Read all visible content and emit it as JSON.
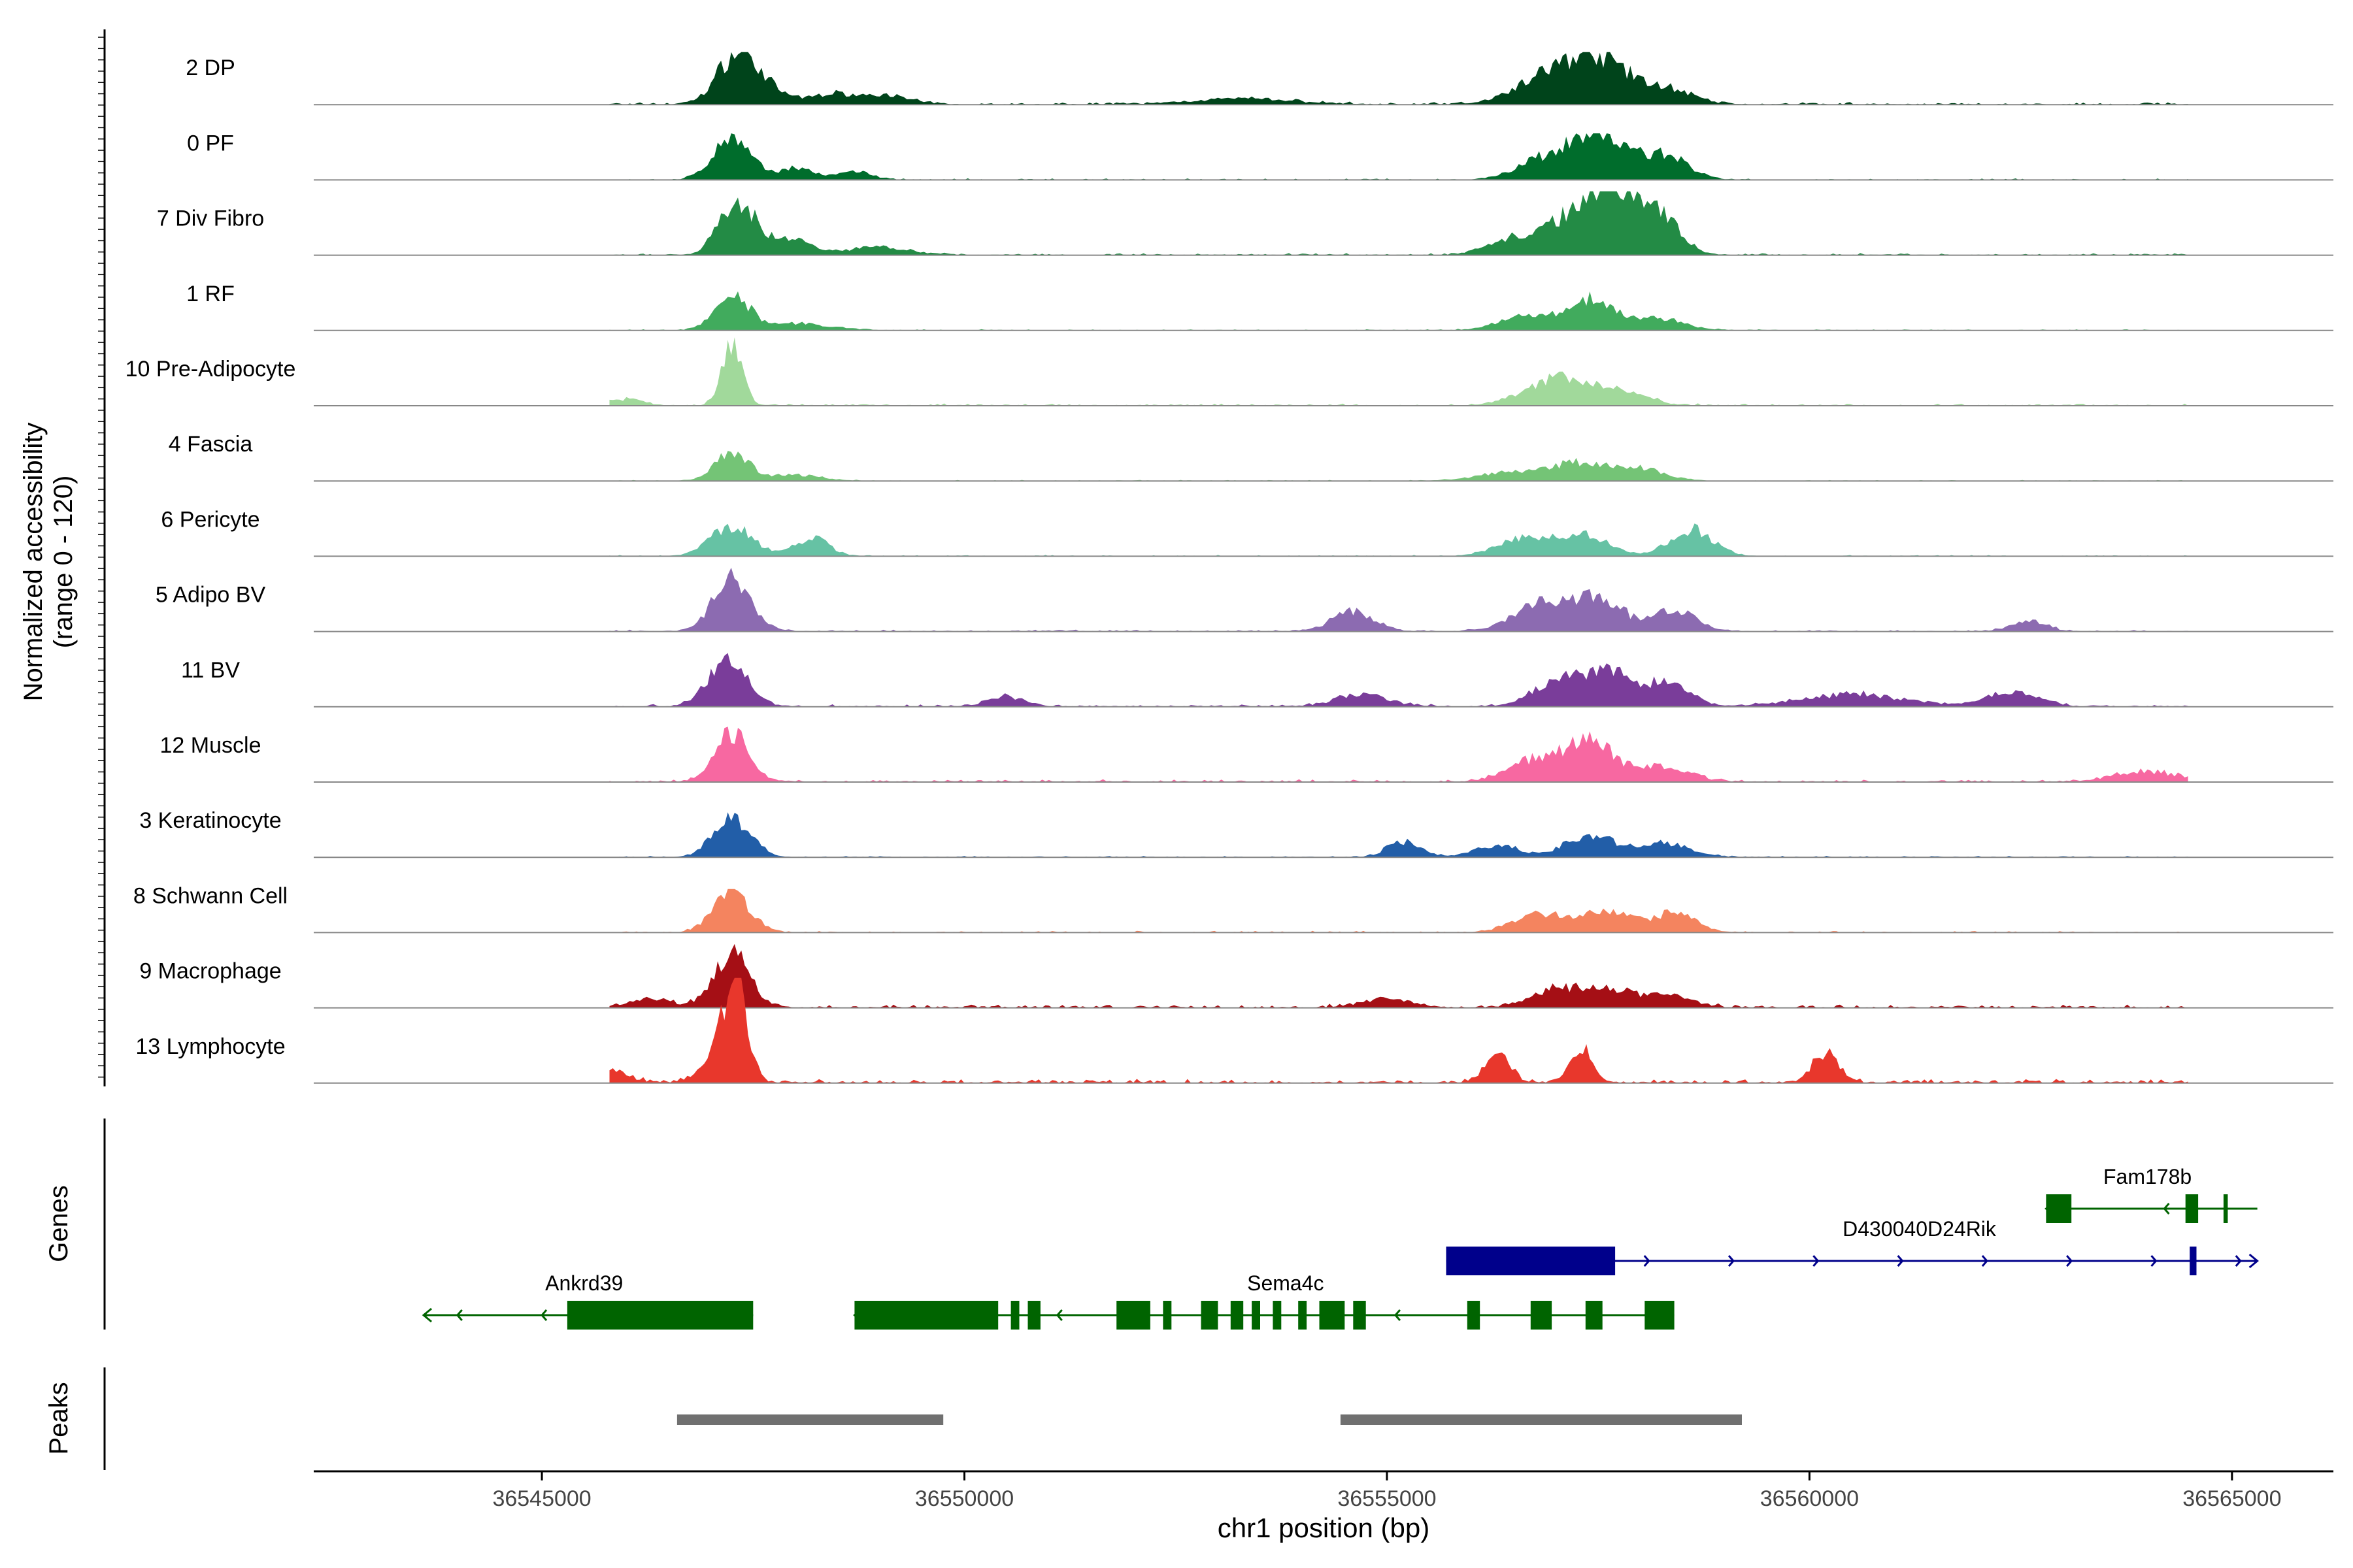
{
  "chart_data": {
    "type": "area",
    "title": "",
    "chrom": "chr1",
    "xlabel": "chr1 position (bp)",
    "ylabel_line1": "Normalized accessibility",
    "ylabel_line2": "(range 0 - 120)",
    "xlim": [
      36542300,
      36566200
    ],
    "y_range": [
      0,
      120
    ],
    "xticks": [
      36545000,
      36550000,
      36555000,
      36560000,
      36565000
    ],
    "xtick_labels": [
      "36545000",
      "36550000",
      "36555000",
      "36560000",
      "36565000"
    ],
    "genes_label": "Genes",
    "peaks_label": "Peaks",
    "tracks": [
      {
        "name": "2 DP",
        "color": "#00441b",
        "scale": 0.7,
        "noise": 0.06,
        "peaks": [
          [
            36547300,
            230,
            1.0
          ],
          [
            36547600,
            260,
            0.3
          ],
          [
            36548400,
            250,
            0.2
          ],
          [
            36549000,
            300,
            0.2
          ],
          [
            36553300,
            600,
            0.12
          ],
          [
            36556800,
            350,
            0.5
          ],
          [
            36557300,
            280,
            0.75
          ],
          [
            36557700,
            250,
            0.6
          ],
          [
            36558300,
            300,
            0.35
          ]
        ]
      },
      {
        "name": "0 PF",
        "color": "#006d2c",
        "scale": 0.62,
        "noise": 0.04,
        "peaks": [
          [
            36547250,
            220,
            1.0
          ],
          [
            36548000,
            200,
            0.3
          ],
          [
            36548700,
            200,
            0.2
          ],
          [
            36556800,
            300,
            0.45
          ],
          [
            36557300,
            250,
            0.8
          ],
          [
            36557700,
            250,
            0.7
          ],
          [
            36558300,
            260,
            0.6
          ]
        ]
      },
      {
        "name": "7 Div Fibro",
        "color": "#238b45",
        "scale": 0.85,
        "noise": 0.04,
        "peaks": [
          [
            36547300,
            200,
            1.0
          ],
          [
            36547900,
            260,
            0.3
          ],
          [
            36549000,
            350,
            0.15
          ],
          [
            36556500,
            300,
            0.3
          ],
          [
            36557300,
            320,
            0.8
          ],
          [
            36557800,
            300,
            0.75
          ],
          [
            36558200,
            260,
            0.6
          ]
        ]
      },
      {
        "name": "1 RF",
        "color": "#41ab5d",
        "scale": 0.52,
        "noise": 0.04,
        "peaks": [
          [
            36547250,
            200,
            1.0
          ],
          [
            36548000,
            400,
            0.2
          ],
          [
            36556600,
            300,
            0.4
          ],
          [
            36557400,
            280,
            0.9
          ],
          [
            36558200,
            300,
            0.35
          ]
        ]
      },
      {
        "name": "10 Pre-Adipocyte",
        "color": "#a1d99b",
        "scale": 0.95,
        "noise": 0.04,
        "peaks": [
          [
            36547250,
            120,
            1.0
          ],
          [
            36546000,
            200,
            0.1
          ],
          [
            36556800,
            300,
            0.25
          ],
          [
            36557200,
            300,
            0.3
          ],
          [
            36557800,
            300,
            0.2
          ]
        ]
      },
      {
        "name": "4 Fascia",
        "color": "#74c476",
        "scale": 0.45,
        "noise": 0.04,
        "peaks": [
          [
            36547250,
            200,
            1.0
          ],
          [
            36548000,
            300,
            0.2
          ],
          [
            36556500,
            400,
            0.3
          ],
          [
            36557300,
            300,
            0.6
          ],
          [
            36558000,
            300,
            0.4
          ]
        ]
      },
      {
        "name": "6 Pericyte",
        "color": "#66c2a4",
        "scale": 0.55,
        "noise": 0.04,
        "peaks": [
          [
            36547250,
            250,
            0.8
          ],
          [
            36548200,
            200,
            0.5
          ],
          [
            36556600,
            300,
            0.45
          ],
          [
            36557300,
            300,
            0.6
          ],
          [
            36558600,
            250,
            0.75
          ]
        ]
      },
      {
        "name": "5 Adipo BV",
        "color": "#8c6bb1",
        "scale": 0.85,
        "noise": 0.04,
        "peaks": [
          [
            36547250,
            220,
            1.0
          ],
          [
            36554600,
            250,
            0.35
          ],
          [
            36556800,
            300,
            0.5
          ],
          [
            36557500,
            280,
            0.6
          ],
          [
            36558400,
            250,
            0.4
          ],
          [
            36562600,
            200,
            0.2
          ]
        ]
      },
      {
        "name": "11 BV",
        "color": "#7a3d9a",
        "scale": 0.75,
        "noise": 0.06,
        "peaks": [
          [
            36547200,
            230,
            1.0
          ],
          [
            36550500,
            200,
            0.2
          ],
          [
            36554700,
            300,
            0.25
          ],
          [
            36557000,
            280,
            0.5
          ],
          [
            36557600,
            260,
            0.7
          ],
          [
            36558300,
            260,
            0.5
          ],
          [
            36560500,
            600,
            0.25
          ],
          [
            36562400,
            300,
            0.3
          ]
        ]
      },
      {
        "name": "12 Muscle",
        "color": "#f768a1",
        "scale": 0.75,
        "noise": 0.06,
        "peaks": [
          [
            36547250,
            200,
            1.0
          ],
          [
            36556700,
            300,
            0.4
          ],
          [
            36557400,
            300,
            0.8
          ],
          [
            36558300,
            300,
            0.3
          ],
          [
            36564000,
            400,
            0.2
          ]
        ]
      },
      {
        "name": "3 Keratinocyte",
        "color": "#225ea8",
        "scale": 0.6,
        "noise": 0.04,
        "peaks": [
          [
            36547250,
            220,
            1.0
          ],
          [
            36555200,
            200,
            0.4
          ],
          [
            36556300,
            250,
            0.3
          ],
          [
            36557400,
            300,
            0.55
          ],
          [
            36558300,
            300,
            0.35
          ]
        ]
      },
      {
        "name": "8 Schwann Cell",
        "color": "#f4845f",
        "scale": 0.58,
        "noise": 0.05,
        "peaks": [
          [
            36547250,
            220,
            1.0
          ],
          [
            36556800,
            300,
            0.5
          ],
          [
            36557600,
            300,
            0.5
          ],
          [
            36558400,
            250,
            0.5
          ]
        ]
      },
      {
        "name": "9 Macrophage",
        "color": "#a50f15",
        "scale": 0.85,
        "noise": 0.07,
        "peaks": [
          [
            36547250,
            200,
            1.0
          ],
          [
            36546300,
            250,
            0.15
          ],
          [
            36555000,
            300,
            0.15
          ],
          [
            36557000,
            300,
            0.3
          ],
          [
            36557600,
            300,
            0.3
          ],
          [
            36558300,
            300,
            0.2
          ]
        ]
      },
      {
        "name": "13 Lymphocyte",
        "color": "#e8372c",
        "scale": 1.4,
        "noise": 0.05,
        "peaks": [
          [
            36547300,
            130,
            1.0
          ],
          [
            36547100,
            200,
            0.3
          ],
          [
            36556300,
            150,
            0.3
          ],
          [
            36557300,
            120,
            0.4
          ],
          [
            36560200,
            150,
            0.35
          ],
          [
            36545800,
            200,
            0.15
          ]
        ]
      }
    ],
    "genes": [
      {
        "name": "Ankrd39",
        "color": "#006400",
        "strand": "-",
        "row": 3,
        "start": 36543600,
        "end": 36547500,
        "label_x": 36545500,
        "exons": [
          [
            36545300,
            36547500
          ]
        ]
      },
      {
        "name": "Sema4c",
        "color": "#006400",
        "strand": "-",
        "row": 3,
        "start": 36548700,
        "end": 36558400,
        "label_x": 36553800,
        "exons": [
          [
            36548700,
            36550400
          ],
          [
            36550550,
            36550650
          ],
          [
            36550750,
            36550900
          ],
          [
            36551800,
            36552200
          ],
          [
            36552350,
            36552450
          ],
          [
            36552800,
            36553000
          ],
          [
            36553150,
            36553300
          ],
          [
            36553400,
            36553500
          ],
          [
            36553650,
            36553750
          ],
          [
            36553950,
            36554050
          ],
          [
            36554200,
            36554500
          ],
          [
            36554600,
            36554750
          ],
          [
            36555950,
            36556100
          ],
          [
            36556700,
            36556950
          ],
          [
            36557350,
            36557550
          ],
          [
            36558050,
            36558400
          ]
        ]
      },
      {
        "name": "D430040D24Rik",
        "color": "#00008b",
        "strand": "+",
        "row": 2,
        "start": 36555700,
        "end": 36565300,
        "label_x": 36561300,
        "exons": [
          [
            36555700,
            36557700
          ],
          [
            36564500,
            36564580
          ]
        ]
      },
      {
        "name": "Fam178b",
        "color": "#006400",
        "strand": "-",
        "row": 1,
        "start": 36562800,
        "end": 36565300,
        "label_x": 36564000,
        "exons": [
          [
            36562800,
            36563100
          ],
          [
            36564450,
            36564600
          ],
          [
            36564900,
            36564950
          ]
        ]
      }
    ],
    "peaks": [
      {
        "start": 36546600,
        "end": 36549750
      },
      {
        "start": 36554450,
        "end": 36559200
      }
    ]
  }
}
